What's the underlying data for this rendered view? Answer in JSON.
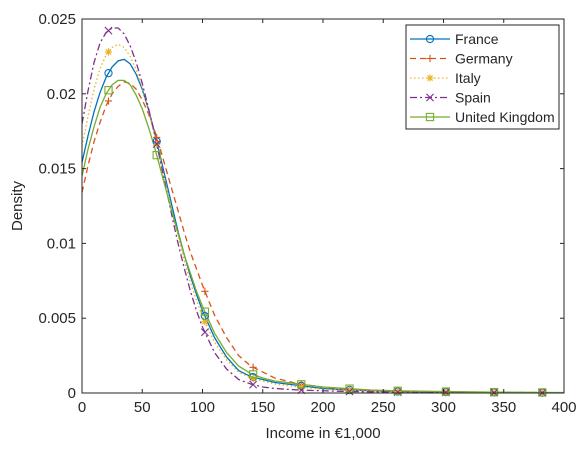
{
  "chart_data": {
    "type": "line",
    "xlabel": "Income in €1,000",
    "ylabel": "Density",
    "xlim": [
      0,
      400
    ],
    "ylim": [
      0,
      0.025
    ],
    "x_ticks": [
      0,
      50,
      100,
      150,
      200,
      250,
      300,
      350,
      400
    ],
    "y_ticks": [
      0,
      0.005,
      0.01,
      0.015,
      0.02,
      0.025
    ],
    "x_tick_labels": [
      "0",
      "50",
      "100",
      "150",
      "200",
      "250",
      "300",
      "350",
      "400"
    ],
    "y_tick_labels": [
      "0",
      "0.005",
      "0.01",
      "0.015",
      "0.02",
      "0.025"
    ],
    "grid": false,
    "legend_position": "top-right",
    "marker_x": [
      22,
      62,
      102,
      142,
      182,
      222,
      262,
      302,
      342,
      382
    ],
    "series": [
      {
        "name": "France",
        "color": "#0072BD",
        "dash": "",
        "marker": "circle",
        "x": [
          0,
          5,
          10,
          15,
          20,
          25,
          30,
          35,
          40,
          45,
          50,
          55,
          60,
          65,
          70,
          75,
          80,
          85,
          90,
          95,
          100,
          110,
          120,
          130,
          140,
          150,
          160,
          170,
          180,
          200,
          220,
          240,
          260,
          280,
          300,
          320,
          340,
          360,
          380,
          400
        ],
        "y": [
          0.0154,
          0.0172,
          0.0188,
          0.0201,
          0.0211,
          0.0218,
          0.0222,
          0.0223,
          0.022,
          0.0213,
          0.0203,
          0.019,
          0.0175,
          0.0158,
          0.0141,
          0.0124,
          0.0107,
          0.0092,
          0.0078,
          0.0066,
          0.0055,
          0.0037,
          0.0024,
          0.0015,
          0.0011,
          0.0009,
          0.0007,
          0.0006,
          0.0005,
          0.0003,
          0.0002,
          0.00015,
          0.0001,
          8e-05,
          6e-05,
          5e-05,
          4e-05,
          3e-05,
          2e-05,
          2e-05
        ]
      },
      {
        "name": "Germany",
        "color": "#D95319",
        "dash": "6,4",
        "marker": "plus",
        "x": [
          0,
          5,
          10,
          15,
          20,
          25,
          30,
          35,
          40,
          45,
          50,
          55,
          60,
          65,
          70,
          75,
          80,
          85,
          90,
          95,
          100,
          110,
          120,
          130,
          140,
          150,
          160,
          170,
          180,
          200,
          220,
          240,
          260,
          280,
          300,
          320,
          340,
          360,
          380,
          400
        ],
        "y": [
          0.0134,
          0.0152,
          0.0168,
          0.0181,
          0.0192,
          0.02,
          0.0205,
          0.0208,
          0.0207,
          0.0203,
          0.0196,
          0.0187,
          0.0176,
          0.0163,
          0.0149,
          0.0135,
          0.0121,
          0.0107,
          0.0094,
          0.0083,
          0.0072,
          0.0052,
          0.0037,
          0.0025,
          0.0018,
          0.0014,
          0.001,
          0.0008,
          0.0006,
          0.0004,
          0.00025,
          0.00018,
          0.00013,
          0.0001,
          8e-05,
          6e-05,
          5e-05,
          4e-05,
          3e-05,
          2e-05
        ]
      },
      {
        "name": "Italy",
        "color": "#EDB120",
        "dash": "1.5,2.5",
        "marker": "star",
        "x": [
          0,
          5,
          10,
          15,
          20,
          25,
          30,
          35,
          40,
          45,
          50,
          55,
          60,
          65,
          70,
          75,
          80,
          85,
          90,
          95,
          100,
          110,
          120,
          130,
          140,
          150,
          160,
          170,
          180,
          200,
          220,
          240,
          260,
          280,
          300,
          320,
          340,
          360,
          380,
          400
        ],
        "y": [
          0.0165,
          0.0185,
          0.0203,
          0.0217,
          0.0226,
          0.0231,
          0.0233,
          0.0231,
          0.0225,
          0.0216,
          0.0204,
          0.0189,
          0.0173,
          0.0156,
          0.0138,
          0.012,
          0.0104,
          0.0088,
          0.0074,
          0.0062,
          0.0051,
          0.0034,
          0.0022,
          0.0014,
          0.001,
          0.0008,
          0.0006,
          0.0005,
          0.0004,
          0.00025,
          0.00018,
          0.00013,
          0.0001,
          7e-05,
          5e-05,
          4e-05,
          3e-05,
          2e-05,
          2e-05,
          1e-05
        ]
      },
      {
        "name": "Spain",
        "color": "#7E2F8E",
        "dash": "7,3,2,3",
        "marker": "x",
        "x": [
          0,
          5,
          10,
          15,
          20,
          25,
          30,
          35,
          40,
          45,
          50,
          55,
          60,
          65,
          70,
          75,
          80,
          85,
          90,
          95,
          100,
          110,
          120,
          130,
          140,
          150,
          160,
          170,
          180,
          200,
          220,
          240,
          260,
          280,
          300,
          320,
          340,
          360,
          380,
          400
        ],
        "y": [
          0.018,
          0.0202,
          0.0221,
          0.0234,
          0.0241,
          0.0244,
          0.0244,
          0.024,
          0.0232,
          0.0221,
          0.0207,
          0.0191,
          0.0174,
          0.0155,
          0.0136,
          0.0117,
          0.0099,
          0.0083,
          0.0068,
          0.0055,
          0.0044,
          0.0027,
          0.0016,
          0.0009,
          0.0006,
          0.0004,
          0.0003,
          0.00025,
          0.0002,
          0.00015,
          0.0001,
          8e-05,
          6e-05,
          5e-05,
          4e-05,
          3e-05,
          2e-05,
          2e-05,
          1e-05,
          1e-05
        ]
      },
      {
        "name": "United Kingdom",
        "color": "#77AC30",
        "dash": "",
        "marker": "square",
        "x": [
          0,
          5,
          10,
          15,
          20,
          25,
          30,
          35,
          40,
          45,
          50,
          55,
          60,
          65,
          70,
          75,
          80,
          85,
          90,
          95,
          100,
          110,
          120,
          130,
          140,
          150,
          160,
          170,
          180,
          200,
          220,
          240,
          260,
          280,
          300,
          320,
          340,
          360,
          380,
          400
        ],
        "y": [
          0.0145,
          0.0163,
          0.0178,
          0.0191,
          0.02,
          0.0206,
          0.0209,
          0.0209,
          0.0206,
          0.0199,
          0.019,
          0.0178,
          0.0165,
          0.015,
          0.0135,
          0.012,
          0.0106,
          0.0092,
          0.008,
          0.0068,
          0.0058,
          0.004,
          0.0027,
          0.0018,
          0.0013,
          0.001,
          0.0008,
          0.0007,
          0.0006,
          0.0004,
          0.0003,
          0.0002,
          0.00015,
          0.00012,
          0.0001,
          8e-05,
          6e-05,
          5e-05,
          4e-05,
          3e-05
        ]
      }
    ]
  }
}
